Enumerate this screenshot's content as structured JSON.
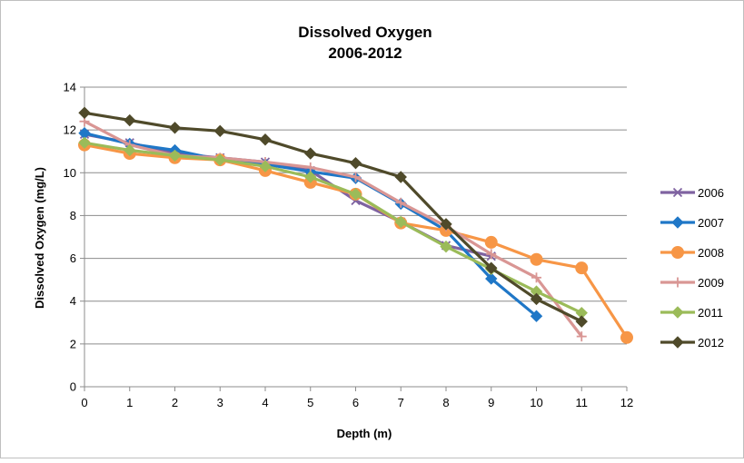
{
  "chart_data": {
    "type": "line",
    "title": "Dissolved Oxygen",
    "subtitle": "2006-2012",
    "xlabel": "Depth (m)",
    "ylabel": "Dissolved Oxygen (mg/L)",
    "xlim": [
      0,
      12
    ],
    "ylim": [
      0,
      14
    ],
    "x_ticks": [
      0,
      1,
      2,
      3,
      4,
      5,
      6,
      7,
      8,
      9,
      10,
      11,
      12
    ],
    "y_ticks": [
      0,
      2,
      4,
      6,
      8,
      10,
      12,
      14
    ],
    "grid": "horizontal",
    "legend_position": "right",
    "series": [
      {
        "name": "2006",
        "color": "#7f63a1",
        "marker": "x",
        "x": [
          0,
          1,
          2,
          3,
          4,
          5,
          6,
          7,
          8,
          9
        ],
        "y": [
          11.8,
          11.4,
          10.9,
          10.7,
          10.5,
          10.1,
          8.7,
          7.7,
          6.6,
          6.1
        ]
      },
      {
        "name": "2007",
        "color": "#1f77c7",
        "marker": "diamond",
        "x": [
          0,
          1,
          2,
          3,
          4,
          5,
          6,
          7,
          8,
          9,
          10
        ],
        "y": [
          11.85,
          11.35,
          11.05,
          10.6,
          10.4,
          10.05,
          9.75,
          8.55,
          7.3,
          5.05,
          3.3
        ]
      },
      {
        "name": "2008",
        "color": "#f79646",
        "marker": "circle",
        "x": [
          0,
          1,
          2,
          3,
          4,
          5,
          6,
          7,
          8,
          9,
          10,
          11,
          12
        ],
        "y": [
          11.3,
          10.9,
          10.7,
          10.6,
          10.1,
          9.55,
          9.0,
          7.65,
          7.3,
          6.75,
          5.95,
          5.55,
          2.3
        ]
      },
      {
        "name": "2009",
        "color": "#d99694",
        "marker": "plus",
        "x": [
          0,
          1,
          2,
          3,
          4,
          5,
          6,
          7,
          8,
          9,
          10,
          11
        ],
        "y": [
          12.4,
          11.3,
          10.8,
          10.7,
          10.5,
          10.25,
          9.8,
          8.6,
          7.5,
          6.2,
          5.1,
          2.35
        ]
      },
      {
        "name": "2011",
        "color": "#9bbb59",
        "marker": "diamond",
        "x": [
          0,
          1,
          2,
          3,
          4,
          5,
          6,
          7,
          8,
          9,
          10,
          11
        ],
        "y": [
          11.4,
          11.05,
          10.8,
          10.6,
          10.3,
          9.8,
          9.0,
          7.7,
          6.55,
          5.5,
          4.45,
          3.45
        ]
      },
      {
        "name": "2012",
        "color": "#4f4a2a",
        "marker": "diamond",
        "x": [
          0,
          1,
          2,
          3,
          4,
          5,
          6,
          7,
          8,
          9,
          10,
          11
        ],
        "y": [
          12.8,
          12.45,
          12.1,
          11.95,
          11.55,
          10.9,
          10.45,
          9.8,
          7.6,
          5.55,
          4.1,
          3.05
        ]
      }
    ]
  }
}
